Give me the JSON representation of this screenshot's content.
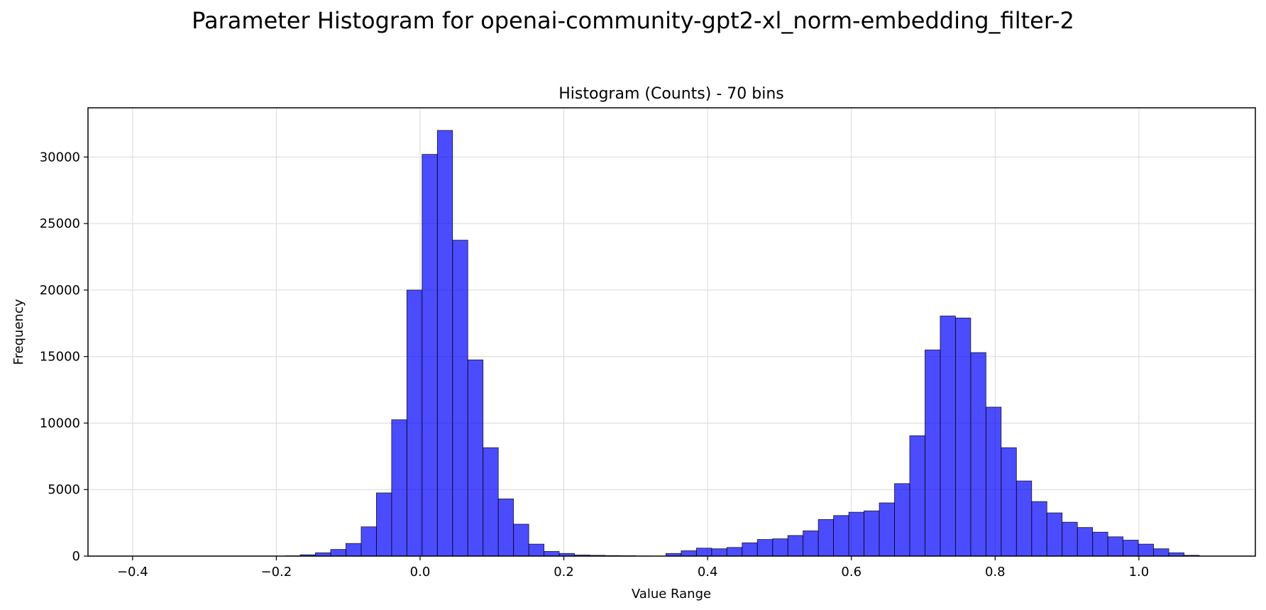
{
  "chart_data": {
    "type": "bar",
    "suptitle": "Parameter Histogram for openai-community-gpt2-xl_norm-embedding_filter-2",
    "title": "Histogram (Counts) - 70 bins",
    "xlabel": "Value Range",
    "ylabel": "Frequency",
    "xlim": [
      -0.462,
      1.162
    ],
    "ylim": [
      0,
      33700
    ],
    "grid": true,
    "xticks": [
      -0.4,
      -0.2,
      0.0,
      0.2,
      0.4,
      0.6,
      0.8,
      1.0
    ],
    "xtick_labels": [
      "−0.4",
      "−0.2",
      "0.0",
      "0.2",
      "0.4",
      "0.6",
      "0.8",
      "1.0"
    ],
    "yticks": [
      0,
      5000,
      10000,
      15000,
      20000,
      25000,
      30000
    ],
    "ytick_labels": [
      "0",
      "5000",
      "10000",
      "15000",
      "20000",
      "25000",
      "30000"
    ],
    "bin_start": -0.4,
    "bin_width": 0.0212,
    "bar_color": "#0000ff",
    "values": [
      0,
      0,
      0,
      0,
      0,
      0,
      0,
      0,
      0,
      0,
      20,
      100,
      250,
      500,
      950,
      2200,
      4750,
      10250,
      20000,
      30200,
      32000,
      23750,
      14750,
      8150,
      4300,
      2400,
      900,
      350,
      200,
      80,
      60,
      40,
      30,
      10,
      0,
      200,
      400,
      600,
      550,
      650,
      1000,
      1250,
      1300,
      1550,
      1900,
      2750,
      3050,
      3300,
      3400,
      4000,
      5450,
      9050,
      15500,
      18050,
      17900,
      15300,
      11200,
      8150,
      5650,
      4100,
      3250,
      2550,
      2150,
      1800,
      1450,
      1200,
      900,
      550,
      250,
      60
    ]
  }
}
